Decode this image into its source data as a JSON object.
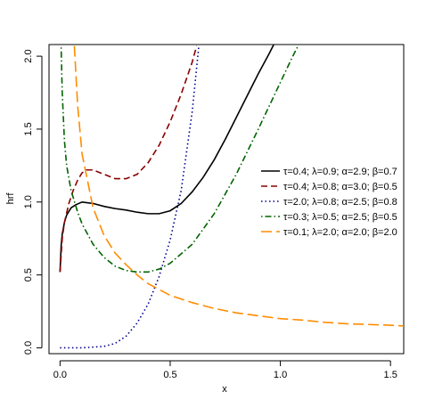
{
  "chart_data": {
    "type": "line",
    "xlabel": "x",
    "ylabel": "hrf",
    "xlim": [
      -0.05,
      1.56
    ],
    "ylim": [
      -0.04,
      2.08
    ],
    "x_ticks": [
      0.0,
      0.5,
      1.0,
      1.5
    ],
    "x_tick_labels": [
      "0.0",
      "0.5",
      "1.0",
      "1.5"
    ],
    "y_ticks": [
      0.0,
      0.5,
      1.0,
      1.5,
      2.0
    ],
    "y_tick_labels": [
      "0.0",
      "0.5",
      "1.0",
      "1.5",
      "2.0"
    ],
    "grid": false,
    "legend_position": "right",
    "series": [
      {
        "name": "τ=0.4; λ=0.9; α=2.9; β=0.7",
        "color": "#000000",
        "dash": "solid",
        "x": [
          0.0,
          0.005,
          0.01,
          0.02,
          0.03,
          0.05,
          0.07,
          0.1,
          0.15,
          0.2,
          0.25,
          0.3,
          0.35,
          0.4,
          0.45,
          0.5,
          0.55,
          0.6,
          0.65,
          0.7,
          0.75,
          0.8,
          0.85,
          0.9,
          0.95,
          0.97
        ],
        "y": [
          0.52,
          0.7,
          0.78,
          0.86,
          0.91,
          0.96,
          0.98,
          1.0,
          0.99,
          0.97,
          0.955,
          0.945,
          0.93,
          0.92,
          0.92,
          0.94,
          0.99,
          1.07,
          1.17,
          1.29,
          1.43,
          1.58,
          1.73,
          1.88,
          2.02,
          2.08
        ]
      },
      {
        "name": "τ=0.4; λ=0.8; α=3.0; β=0.5",
        "color": "#8b0000",
        "dash": "dashed",
        "x": [
          0.0,
          0.01,
          0.02,
          0.04,
          0.06,
          0.08,
          0.1,
          0.12,
          0.15,
          0.2,
          0.25,
          0.3,
          0.35,
          0.4,
          0.45,
          0.5,
          0.55,
          0.6,
          0.62
        ],
        "y": [
          0.52,
          0.75,
          0.86,
          0.99,
          1.08,
          1.15,
          1.2,
          1.22,
          1.22,
          1.19,
          1.16,
          1.16,
          1.19,
          1.27,
          1.39,
          1.55,
          1.74,
          1.96,
          2.07
        ]
      },
      {
        "name": "τ=2.0; λ=0.8; α=2.5; β=0.8",
        "color": "#00008b",
        "dash": "dotted",
        "x": [
          0.0,
          0.1,
          0.2,
          0.25,
          0.3,
          0.35,
          0.4,
          0.45,
          0.5,
          0.55,
          0.6,
          0.63
        ],
        "y": [
          0.0,
          0.0,
          0.01,
          0.03,
          0.08,
          0.17,
          0.3,
          0.49,
          0.74,
          1.08,
          1.62,
          2.07
        ]
      },
      {
        "name": "τ=0.3; λ=0.5; α=2.5; β=0.5",
        "color": "#006400",
        "dash": "dotdash",
        "x": [
          0.005,
          0.01,
          0.02,
          0.03,
          0.05,
          0.08,
          0.1,
          0.15,
          0.2,
          0.25,
          0.3,
          0.35,
          0.4,
          0.45,
          0.5,
          0.6,
          0.7,
          0.8,
          0.9,
          1.0,
          1.05,
          1.08
        ],
        "y": [
          2.06,
          1.75,
          1.42,
          1.25,
          1.08,
          0.93,
          0.85,
          0.71,
          0.62,
          0.56,
          0.53,
          0.52,
          0.52,
          0.54,
          0.58,
          0.71,
          0.92,
          1.19,
          1.5,
          1.82,
          1.98,
          2.07
        ]
      },
      {
        "name": "τ=0.1; λ=2.0; α=2.0; β=2.0",
        "color": "#ff8c00",
        "dash": "longdash",
        "x": [
          0.065,
          0.08,
          0.1,
          0.15,
          0.2,
          0.25,
          0.3,
          0.35,
          0.4,
          0.5,
          0.6,
          0.7,
          0.8,
          0.9,
          1.0,
          1.1,
          1.2,
          1.3,
          1.4,
          1.5,
          1.56
        ],
        "y": [
          2.07,
          1.66,
          1.33,
          0.96,
          0.77,
          0.65,
          0.57,
          0.5,
          0.44,
          0.36,
          0.31,
          0.27,
          0.24,
          0.22,
          0.2,
          0.19,
          0.175,
          0.165,
          0.16,
          0.155,
          0.15
        ]
      }
    ]
  }
}
